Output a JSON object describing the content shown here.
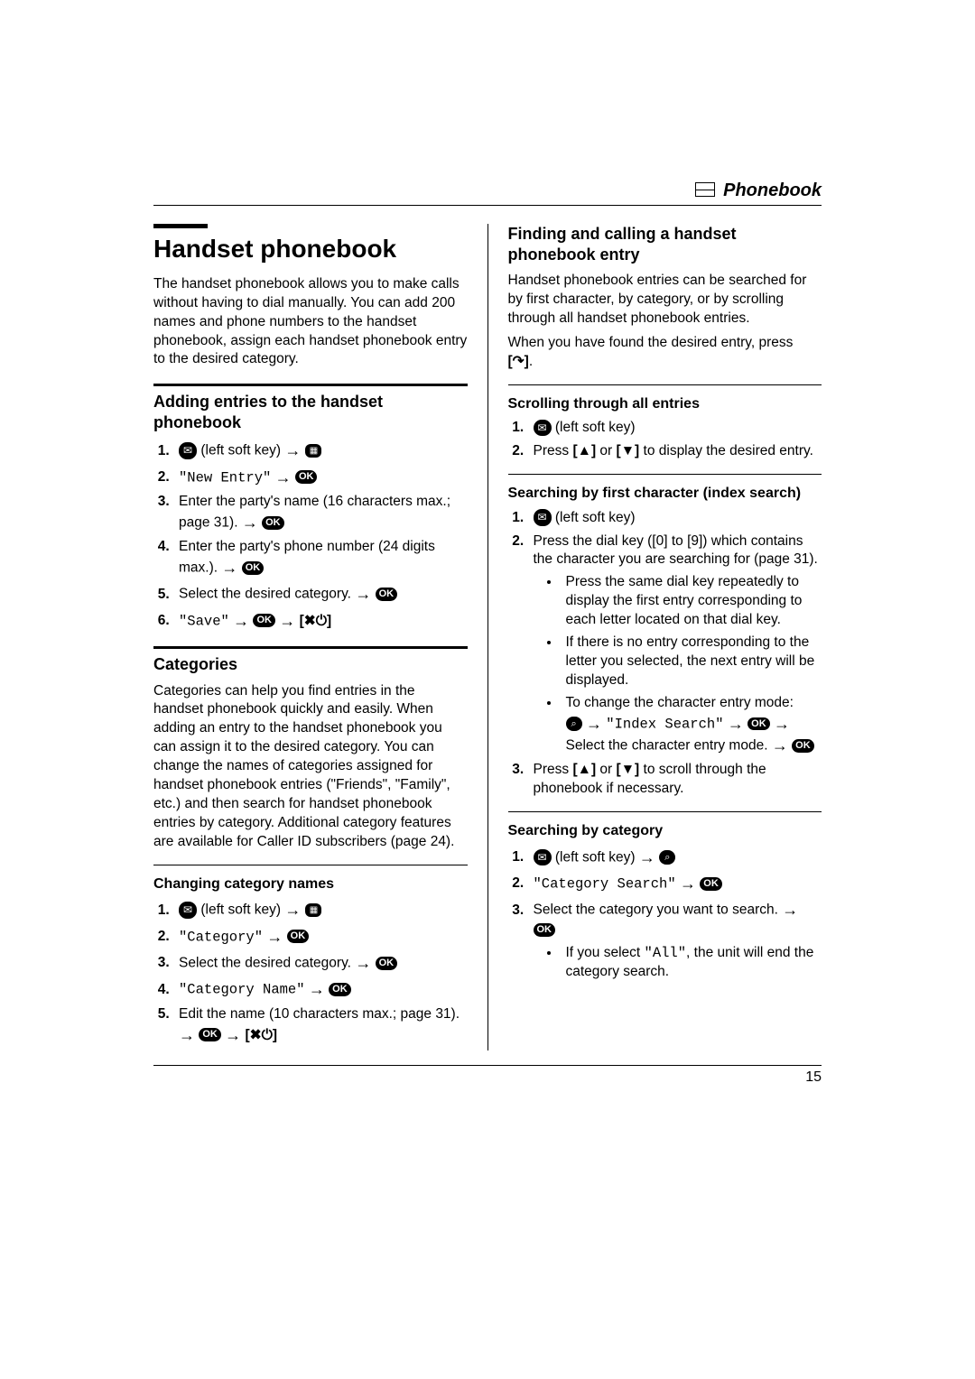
{
  "header": {
    "title": "Phonebook"
  },
  "left": {
    "title": "Handset phonebook",
    "intro": "The handset phonebook allows you to make calls without having to dial manually. You can add 200 names and phone numbers to the handset phonebook, assign each handset phonebook entry to the desired category.",
    "adding": {
      "heading": "Adding entries to the handset phonebook",
      "s1_tail": "(left soft key)",
      "s2_pre": "\"New Entry\"",
      "s3": "Enter the party's name (16 characters max.; page 31).",
      "s4": "Enter the party's phone number (24 digits max.).",
      "s5": "Select the desired category.",
      "s6_pre": "\"Save\""
    },
    "categories": {
      "heading": "Categories",
      "body": "Categories can help you find entries in the handset phonebook quickly and easily. When adding an entry to the handset phonebook you can assign it to the desired category. You can change the names of categories assigned for handset phonebook entries (\"Friends\", \"Family\", etc.) and then search for handset phonebook entries by category. Additional category features are available for Caller ID subscribers (page 24).",
      "changing_heading": "Changing category names",
      "c1_tail": "(left soft key)",
      "c2_pre": "\"Category\"",
      "c3": "Select the desired category.",
      "c4_pre": "\"Category Name\"",
      "c5": "Edit the name (10 characters max.; page 31)."
    }
  },
  "right": {
    "finding": {
      "heading": "Finding and calling a handset phonebook entry",
      "body": "Handset phonebook entries can be searched for by first character, by category, or by scrolling through all handset phonebook entries.",
      "body2_pre": "When you have found the desired entry, press",
      "body2_post": "."
    },
    "scroll_heading": "Scrolling through all entries",
    "scroll_s1": "(left soft key)",
    "scroll_s2": "to display the desired entry.",
    "index": {
      "heading": "Searching by first character (index search)",
      "s1": "(left soft key)",
      "s2": "Press the dial key ([0] to [9]) which contains the character you are searching for (page 31).",
      "b1": "Press the same dial key repeatedly to display the first entry corresponding to each letter located on that dial key.",
      "b2": "If there is no entry corresponding to the letter you selected, the next entry will be displayed.",
      "b3_pre": "To change the character entry mode:",
      "b3_mid": "\"Index Search\"",
      "b3_tail": "Select the character entry mode.",
      "s3": "to scroll through the phonebook if necessary."
    },
    "cat": {
      "heading": "Searching by category",
      "s1": "(left soft key)",
      "s2_pre": "\"Category Search\"",
      "s3": "Select the category you want to search.",
      "s3b_pre": "If you select",
      "s3b_mid": "\"All\"",
      "s3b_post": ", the unit will end the category search."
    }
  },
  "footer": {
    "page": "15"
  },
  "labels": {
    "ok": "OK",
    "press": "Press",
    "or": "or",
    "up": "[▲]",
    "down": "[▼]",
    "offkey": "[✖⏻]",
    "callkey": "[↷]"
  }
}
